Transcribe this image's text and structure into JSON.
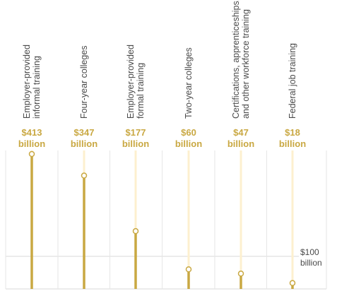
{
  "chart_data": {
    "type": "lollipop",
    "title": "",
    "categories": [
      [
        "Employer-provided",
        "informal training"
      ],
      [
        "Four-year colleges"
      ],
      [
        "Employer-provided",
        "formal training"
      ],
      [
        "Two-year colleges"
      ],
      [
        "Certifications, apprenticeships,",
        "and other workforce training"
      ],
      [
        "Federal job training"
      ]
    ],
    "values": [
      413,
      347,
      177,
      60,
      47,
      18
    ],
    "value_labels": [
      [
        "$413",
        "billion"
      ],
      [
        "$347",
        "billion"
      ],
      [
        "$177",
        "billion"
      ],
      [
        "$60",
        "billion"
      ],
      [
        "$47",
        "billion"
      ],
      [
        "$18",
        "billion"
      ]
    ],
    "ylim": [
      0,
      413
    ],
    "reference_line": {
      "value": 100,
      "label": [
        "$100",
        "billion"
      ]
    },
    "colors": {
      "accent": "#c9a842",
      "label": "#c9a842",
      "track": "#fdf0cf",
      "grid": "#e6e6e6",
      "text": "#4a4a4a"
    }
  }
}
